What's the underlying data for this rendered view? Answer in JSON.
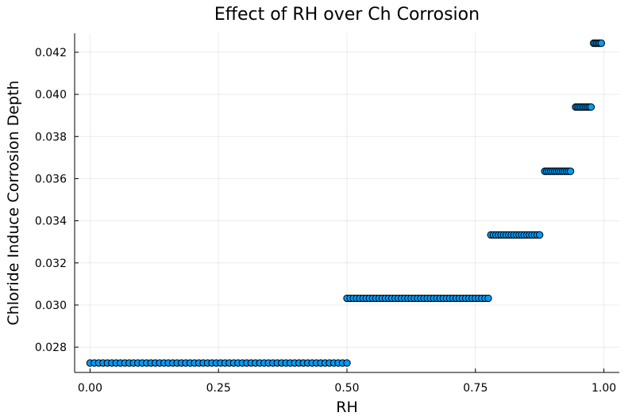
{
  "chart_data": {
    "type": "scatter",
    "title": "Effect of RH over Ch Corrosion",
    "xlabel": "RH",
    "ylabel": "Chloride Induce Corrosion Depth",
    "xlim": [
      -0.03,
      1.03
    ],
    "ylim": [
      0.0268,
      0.0429
    ],
    "xticks": [
      0.0,
      0.25,
      0.5,
      0.75,
      1.0
    ],
    "xtick_labels": [
      "0.00",
      "0.25",
      "0.50",
      "0.75",
      "1.00"
    ],
    "yticks": [
      0.028,
      0.03,
      0.032,
      0.034,
      0.036,
      0.038,
      0.04,
      0.042
    ],
    "ytick_labels": [
      "0.028",
      "0.030",
      "0.032",
      "0.034",
      "0.036",
      "0.038",
      "0.040",
      "0.042"
    ],
    "grid": true,
    "legend": "none",
    "marker_color": "#009AFA",
    "segments": [
      {
        "x_start": 0.0,
        "x_end": 0.5,
        "y": 0.02725
      },
      {
        "x_start": 0.5,
        "x_end": 0.775,
        "y": 0.03032
      },
      {
        "x_start": 0.78,
        "x_end": 0.875,
        "y": 0.03333
      },
      {
        "x_start": 0.885,
        "x_end": 0.935,
        "y": 0.03635
      },
      {
        "x_start": 0.945,
        "x_end": 0.975,
        "y": 0.0394
      },
      {
        "x_start": 0.98,
        "x_end": 0.995,
        "y": 0.04243
      }
    ],
    "points_per_segment": [
      60,
      45,
      20,
      14,
      10,
      6
    ]
  }
}
